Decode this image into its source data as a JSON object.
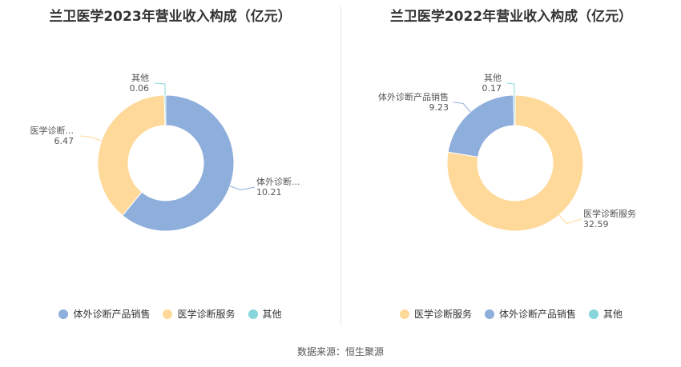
{
  "colors": {
    "blue": "#8eaedc",
    "orange": "#ffd99a",
    "teal": "#86d6db"
  },
  "source": "数据来源：恒生聚源",
  "chart_data": [
    {
      "type": "pie",
      "variant": "donut",
      "title": "兰卫医学2023年营业收入构成（亿元）",
      "legend_position": "bottom",
      "slices": [
        {
          "name": "体外诊断产品销售",
          "label": "体外诊断...",
          "value": 10.21,
          "display": "10.21",
          "color": "#8eaedc"
        },
        {
          "name": "医学诊断服务",
          "label": "医学诊断...",
          "value": 6.47,
          "display": "6.47",
          "color": "#ffd99a"
        },
        {
          "name": "其他",
          "label": "其他",
          "value": 0.06,
          "display": "0.06",
          "color": "#86d6db"
        }
      ]
    },
    {
      "type": "pie",
      "variant": "donut",
      "title": "兰卫医学2022年营业收入构成（亿元）",
      "legend_position": "bottom",
      "slices": [
        {
          "name": "医学诊断服务",
          "label": "医学诊断服务",
          "value": 32.59,
          "display": "32.59",
          "color": "#ffd99a"
        },
        {
          "name": "体外诊断产品销售",
          "label": "体外诊断产品销售",
          "value": 9.23,
          "display": "9.23",
          "color": "#8eaedc"
        },
        {
          "name": "其他",
          "label": "其他",
          "value": 0.17,
          "display": "0.17",
          "color": "#86d6db"
        }
      ]
    }
  ]
}
